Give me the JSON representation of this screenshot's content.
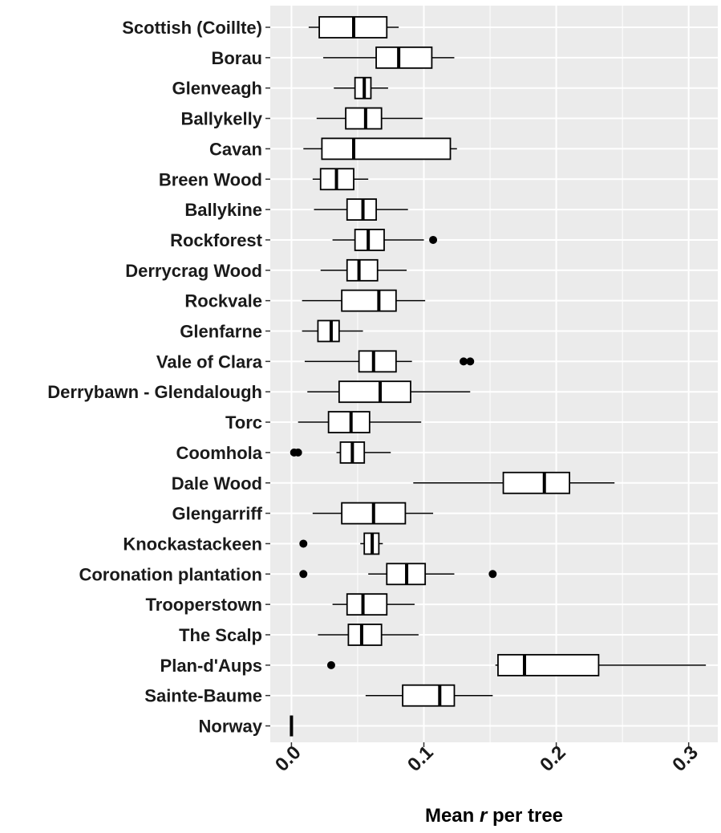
{
  "chart_data": {
    "type": "boxplot",
    "orientation": "horizontal",
    "xlabel_parts": [
      "Mean ",
      "r",
      " per tree"
    ],
    "xlim": [
      -0.016,
      0.322
    ],
    "xticks": [
      0.0,
      0.1,
      0.2,
      0.3
    ],
    "xtick_labels": [
      "0.0",
      "0.1",
      "0.2",
      "0.3"
    ],
    "grid": true,
    "panel_background": "#ebebeb",
    "grid_color": "#ffffff",
    "box_fill": "#ffffff",
    "line_color": "#000000",
    "categories": [
      "Scottish (Coillte)",
      "Borau",
      "Glenveagh",
      "Ballykelly",
      "Cavan",
      "Breen Wood",
      "Ballykine",
      "Rockforest",
      "Derrycrag Wood",
      "Rockvale",
      "Glenfarne",
      "Vale of Clara",
      "Derrybawn - Glendalough",
      "Torc",
      "Coomhola",
      "Dale Wood",
      "Glengarriff",
      "Knockastackeen",
      "Coronation plantation",
      "Trooperstown",
      "The Scalp",
      "Plan-d'Aups",
      "Sainte-Baume",
      "Norway"
    ],
    "boxes": [
      {
        "name": "Scottish (Coillte)",
        "min": 0.013,
        "q1": 0.021,
        "median": 0.047,
        "q3": 0.072,
        "max": 0.081,
        "outliers": []
      },
      {
        "name": "Borau",
        "min": 0.024,
        "q1": 0.064,
        "median": 0.081,
        "q3": 0.106,
        "max": 0.123,
        "outliers": []
      },
      {
        "name": "Glenveagh",
        "min": 0.032,
        "q1": 0.048,
        "median": 0.055,
        "q3": 0.06,
        "max": 0.073,
        "outliers": []
      },
      {
        "name": "Ballykelly",
        "min": 0.019,
        "q1": 0.041,
        "median": 0.056,
        "q3": 0.068,
        "max": 0.099,
        "outliers": []
      },
      {
        "name": "Cavan",
        "min": 0.009,
        "q1": 0.023,
        "median": 0.047,
        "q3": 0.12,
        "max": 0.125,
        "outliers": []
      },
      {
        "name": "Breen Wood",
        "min": 0.016,
        "q1": 0.022,
        "median": 0.034,
        "q3": 0.047,
        "max": 0.058,
        "outliers": []
      },
      {
        "name": "Ballykine",
        "min": 0.017,
        "q1": 0.042,
        "median": 0.054,
        "q3": 0.064,
        "max": 0.088,
        "outliers": []
      },
      {
        "name": "Rockforest",
        "min": 0.031,
        "q1": 0.048,
        "median": 0.058,
        "q3": 0.07,
        "max": 0.1,
        "outliers": [
          0.107
        ]
      },
      {
        "name": "Derrycrag Wood",
        "min": 0.022,
        "q1": 0.042,
        "median": 0.051,
        "q3": 0.065,
        "max": 0.087,
        "outliers": []
      },
      {
        "name": "Rockvale",
        "min": 0.008,
        "q1": 0.038,
        "median": 0.066,
        "q3": 0.079,
        "max": 0.101,
        "outliers": []
      },
      {
        "name": "Glenfarne",
        "min": 0.008,
        "q1": 0.02,
        "median": 0.03,
        "q3": 0.036,
        "max": 0.054,
        "outliers": []
      },
      {
        "name": "Vale of Clara",
        "min": 0.01,
        "q1": 0.051,
        "median": 0.062,
        "q3": 0.079,
        "max": 0.091,
        "outliers": [
          0.13,
          0.135
        ]
      },
      {
        "name": "Derrybawn - Glendalough",
        "min": 0.012,
        "q1": 0.036,
        "median": 0.067,
        "q3": 0.09,
        "max": 0.135,
        "outliers": []
      },
      {
        "name": "Torc",
        "min": 0.005,
        "q1": 0.028,
        "median": 0.045,
        "q3": 0.059,
        "max": 0.098,
        "outliers": []
      },
      {
        "name": "Coomhola",
        "min": 0.034,
        "q1": 0.037,
        "median": 0.046,
        "q3": 0.055,
        "max": 0.075,
        "outliers": [
          0.002,
          0.005
        ]
      },
      {
        "name": "Dale Wood",
        "min": 0.092,
        "q1": 0.16,
        "median": 0.191,
        "q3": 0.21,
        "max": 0.244,
        "outliers": []
      },
      {
        "name": "Glengarriff",
        "min": 0.016,
        "q1": 0.038,
        "median": 0.062,
        "q3": 0.086,
        "max": 0.107,
        "outliers": []
      },
      {
        "name": "Knockastackeen",
        "min": 0.052,
        "q1": 0.055,
        "median": 0.061,
        "q3": 0.066,
        "max": 0.069,
        "outliers": [
          0.009
        ]
      },
      {
        "name": "Coronation plantation",
        "min": 0.058,
        "q1": 0.072,
        "median": 0.087,
        "q3": 0.101,
        "max": 0.123,
        "outliers": [
          0.009,
          0.152
        ]
      },
      {
        "name": "Trooperstown",
        "min": 0.031,
        "q1": 0.042,
        "median": 0.054,
        "q3": 0.072,
        "max": 0.093,
        "outliers": []
      },
      {
        "name": "The Scalp",
        "min": 0.02,
        "q1": 0.043,
        "median": 0.053,
        "q3": 0.068,
        "max": 0.096,
        "outliers": []
      },
      {
        "name": "Plan-d'Aups",
        "min": 0.154,
        "q1": 0.156,
        "median": 0.176,
        "q3": 0.232,
        "max": 0.313,
        "outliers": [
          0.03
        ]
      },
      {
        "name": "Sainte-Baume",
        "min": 0.056,
        "q1": 0.084,
        "median": 0.112,
        "q3": 0.123,
        "max": 0.152,
        "outliers": []
      },
      {
        "name": "Norway",
        "min": 0.0,
        "q1": 0.0,
        "median": 0.0,
        "q3": 0.0,
        "max": 0.0,
        "outliers": []
      }
    ]
  }
}
